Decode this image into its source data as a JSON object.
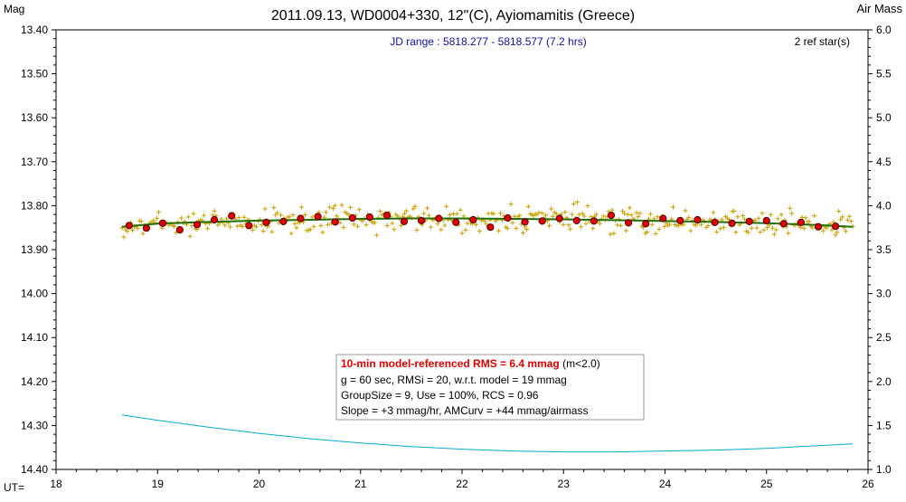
{
  "chart_data": {
    "type": "scatter",
    "title": "2011.09.13, WD0004+330, 12\"(C), Ayiomamitis (Greece)",
    "left_axis_label": "Mag",
    "right_axis_label": "Air Mass",
    "x_axis_label": "UT=",
    "xlim": [
      18,
      26
    ],
    "ylim_mag": [
      13.4,
      14.4
    ],
    "ylim_airmass": [
      6.0,
      1.0
    ],
    "y_reversed": true,
    "x_ticks": [
      "18",
      "19",
      "20",
      "21",
      "22",
      "23",
      "24",
      "25",
      "26"
    ],
    "y_ticks_left": [
      "13.40",
      "13.50",
      "13.60",
      "13.70",
      "13.80",
      "13.90",
      "14.00",
      "14.10",
      "14.20",
      "14.30",
      "14.40"
    ],
    "y_ticks_right": [
      "6.0",
      "5.5",
      "5.0",
      "4.5",
      "4.0",
      "3.5",
      "3.0",
      "2.5",
      "2.0",
      "1.5",
      "1.0"
    ],
    "jd_range_text": "JD range : 5818.277 - 5818.577 (7.2 hrs)",
    "ref_stars_text": "2 ref star(s)",
    "stats_box": {
      "line1_red": "10-min model-referenced RMS = 6.4 mmag",
      "line1_suffix": " (m<2.0)",
      "line2": "g = 60 sec, RMSi = 20, w.r.t. model = 19 mmag",
      "line3": "GroupSize = 9, Use = 100%, RCS = 0.96",
      "line4": "Slope = +3 mmag/hr, AMCurv = +44 mmag/airmass"
    },
    "model_line": {
      "x": [
        18.65,
        19.0,
        19.5,
        20.0,
        20.5,
        21.0,
        21.5,
        22.0,
        22.5,
        23.0,
        23.5,
        24.0,
        24.5,
        25.0,
        25.5,
        25.85
      ],
      "y": [
        13.848,
        13.841,
        13.837,
        13.834,
        13.832,
        13.83,
        13.829,
        13.829,
        13.83,
        13.831,
        13.833,
        13.835,
        13.837,
        13.84,
        13.844,
        13.848
      ]
    },
    "group_means": {
      "x": [
        18.72,
        18.89,
        19.05,
        19.22,
        19.39,
        19.56,
        19.73,
        19.9,
        20.07,
        20.24,
        20.41,
        20.58,
        20.75,
        20.92,
        21.09,
        21.26,
        21.43,
        21.6,
        21.77,
        21.94,
        22.11,
        22.28,
        22.45,
        22.62,
        22.79,
        22.96,
        23.13,
        23.3,
        23.47,
        23.64,
        23.81,
        23.98,
        24.15,
        24.32,
        24.49,
        24.66,
        24.83,
        25.0,
        25.17,
        25.34,
        25.51,
        25.68
      ],
      "y": [
        13.845,
        13.851,
        13.84,
        13.855,
        13.843,
        13.832,
        13.823,
        13.845,
        13.838,
        13.836,
        13.829,
        13.825,
        13.837,
        13.828,
        13.826,
        13.822,
        13.836,
        13.834,
        13.829,
        13.838,
        13.832,
        13.849,
        13.828,
        13.837,
        13.835,
        13.829,
        13.834,
        13.835,
        13.822,
        13.839,
        13.841,
        13.829,
        13.834,
        13.832,
        13.838,
        13.84,
        13.836,
        13.834,
        13.841,
        13.838,
        13.848,
        13.847
      ]
    },
    "raw_points_count": 420,
    "raw_points_note_start": 18.65,
    "raw_points_note_end": 25.85,
    "airmass_curve": {
      "x": [
        18.65,
        19.0,
        19.5,
        20.0,
        20.5,
        21.0,
        21.5,
        22.0,
        22.5,
        23.0,
        23.5,
        24.0,
        24.5,
        25.0,
        25.5,
        25.85
      ],
      "y": [
        1.62,
        1.56,
        1.48,
        1.41,
        1.35,
        1.3,
        1.26,
        1.23,
        1.21,
        1.2,
        1.2,
        1.21,
        1.22,
        1.24,
        1.27,
        1.29
      ]
    },
    "colors": {
      "raw": "#c8a000",
      "mean_fill": "#e00000",
      "mean_stroke": "#500000",
      "model": "#207000",
      "airmass": "#00b0c8",
      "title": "#000000",
      "jd_text": "#1010a0",
      "stats_red": "#e00000"
    }
  }
}
